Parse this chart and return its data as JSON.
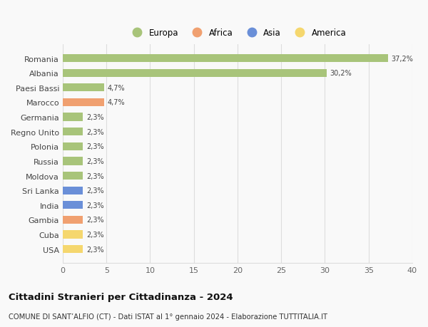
{
  "categories": [
    "USA",
    "Cuba",
    "Gambia",
    "India",
    "Sri Lanka",
    "Moldova",
    "Russia",
    "Polonia",
    "Regno Unito",
    "Germania",
    "Marocco",
    "Paesi Bassi",
    "Albania",
    "Romania"
  ],
  "values": [
    2.3,
    2.3,
    2.3,
    2.3,
    2.3,
    2.3,
    2.3,
    2.3,
    2.3,
    2.3,
    4.7,
    4.7,
    30.2,
    37.2
  ],
  "labels": [
    "2,3%",
    "2,3%",
    "2,3%",
    "2,3%",
    "2,3%",
    "2,3%",
    "2,3%",
    "2,3%",
    "2,3%",
    "2,3%",
    "4,7%",
    "4,7%",
    "30,2%",
    "37,2%"
  ],
  "colors": [
    "#f5d76e",
    "#f5d76e",
    "#f0a070",
    "#6a8fd8",
    "#6a8fd8",
    "#a8c47a",
    "#a8c47a",
    "#a8c47a",
    "#a8c47a",
    "#a8c47a",
    "#f0a070",
    "#a8c47a",
    "#a8c47a",
    "#a8c47a"
  ],
  "continents": [
    "America",
    "America",
    "Africa",
    "Asia",
    "Asia",
    "Europa",
    "Europa",
    "Europa",
    "Europa",
    "Europa",
    "Africa",
    "Europa",
    "Europa",
    "Europa"
  ],
  "legend_labels": [
    "Europa",
    "Africa",
    "Asia",
    "America"
  ],
  "legend_colors": [
    "#a8c47a",
    "#f0a070",
    "#6a8fd8",
    "#f5d76e"
  ],
  "title": "Cittadini Stranieri per Cittadinanza - 2024",
  "subtitle": "COMUNE DI SANT’ALFIO (CT) - Dati ISTAT al 1° gennaio 2024 - Elaborazione TUTTITALIA.IT",
  "xlim": [
    0,
    40
  ],
  "xticks": [
    0,
    5,
    10,
    15,
    20,
    25,
    30,
    35,
    40
  ],
  "background_color": "#f9f9f9",
  "grid_color": "#dddddd",
  "bar_height": 0.55,
  "fig_width": 6.0,
  "fig_height": 4.6,
  "dpi": 100
}
